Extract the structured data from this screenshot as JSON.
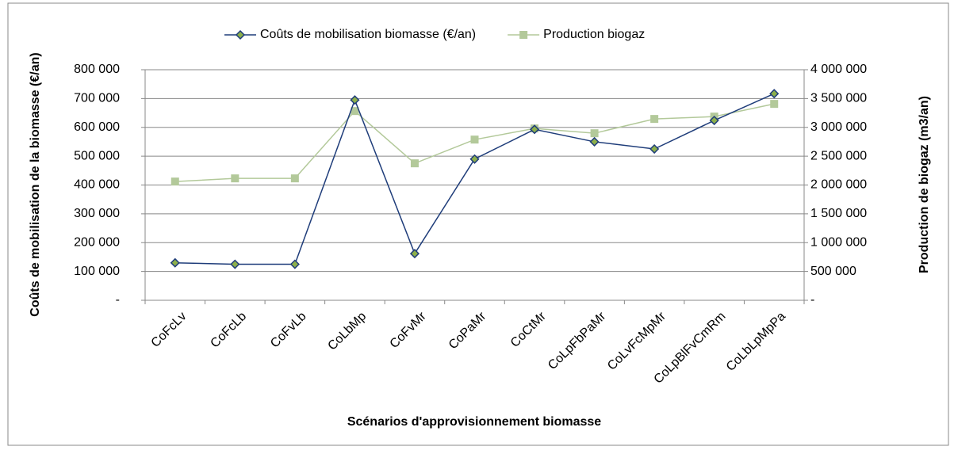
{
  "chart_data": {
    "type": "line",
    "x_label": "Scénarios d'approvisionnement  biomasse",
    "y_label": "Coûts de mobilisation  de la biomasse (€/an)",
    "y2_label": "Production de biogaz  (m3/an)",
    "categories": [
      "CoFcLv",
      "CoFcLb",
      "CoFvLb",
      "CoLbMp",
      "CoFvMr",
      "CoPaMr",
      "CoCtMr",
      "CoLpFbPaMr",
      "CoLvFcMpMr",
      "CoLpBlFvCmRm",
      "CoLbLpMpPa"
    ],
    "series": [
      {
        "name": "Coûts de mobilisation  biomasse  (€/an)",
        "color": "#1f3d7a",
        "marker_color": "#8db04a",
        "marker": "diamond",
        "values": [
          130000,
          125000,
          125000,
          695000,
          162000,
          490000,
          593000,
          550000,
          525000,
          624000,
          717000
        ]
      },
      {
        "name": "Production biogaz",
        "color": "#b3c99a",
        "marker": "square",
        "axis": "y2",
        "values": [
          2060000,
          2115000,
          2115000,
          3283000,
          2376000,
          2788000,
          2981000,
          2898000,
          3146000,
          3187000,
          3407000
        ]
      }
    ],
    "ylim": [
      0,
      800000
    ],
    "yticks": [
      {
        "value": 0,
        "label": "-"
      },
      {
        "value": 100000,
        "label": "100 000"
      },
      {
        "value": 200000,
        "label": "200 000"
      },
      {
        "value": 300000,
        "label": "300 000"
      },
      {
        "value": 400000,
        "label": "400 000"
      },
      {
        "value": 500000,
        "label": "500 000"
      },
      {
        "value": 600000,
        "label": "600 000"
      },
      {
        "value": 700000,
        "label": "700 000"
      },
      {
        "value": 800000,
        "label": "800 000"
      }
    ],
    "y2lim": [
      0,
      4000000
    ],
    "y2ticks": [
      {
        "value": 0,
        "label": "-"
      },
      {
        "value": 500000,
        "label": "500 000"
      },
      {
        "value": 1000000,
        "label": "1 000 000"
      },
      {
        "value": 1500000,
        "label": "1 500 000"
      },
      {
        "value": 2000000,
        "label": "2 000 000"
      },
      {
        "value": 2500000,
        "label": "2 500 000"
      },
      {
        "value": 3000000,
        "label": "3 000 000"
      },
      {
        "value": 3500000,
        "label": "3 500 000"
      },
      {
        "value": 4000000,
        "label": "4 000 000"
      }
    ],
    "grid": true,
    "legend": "top"
  }
}
